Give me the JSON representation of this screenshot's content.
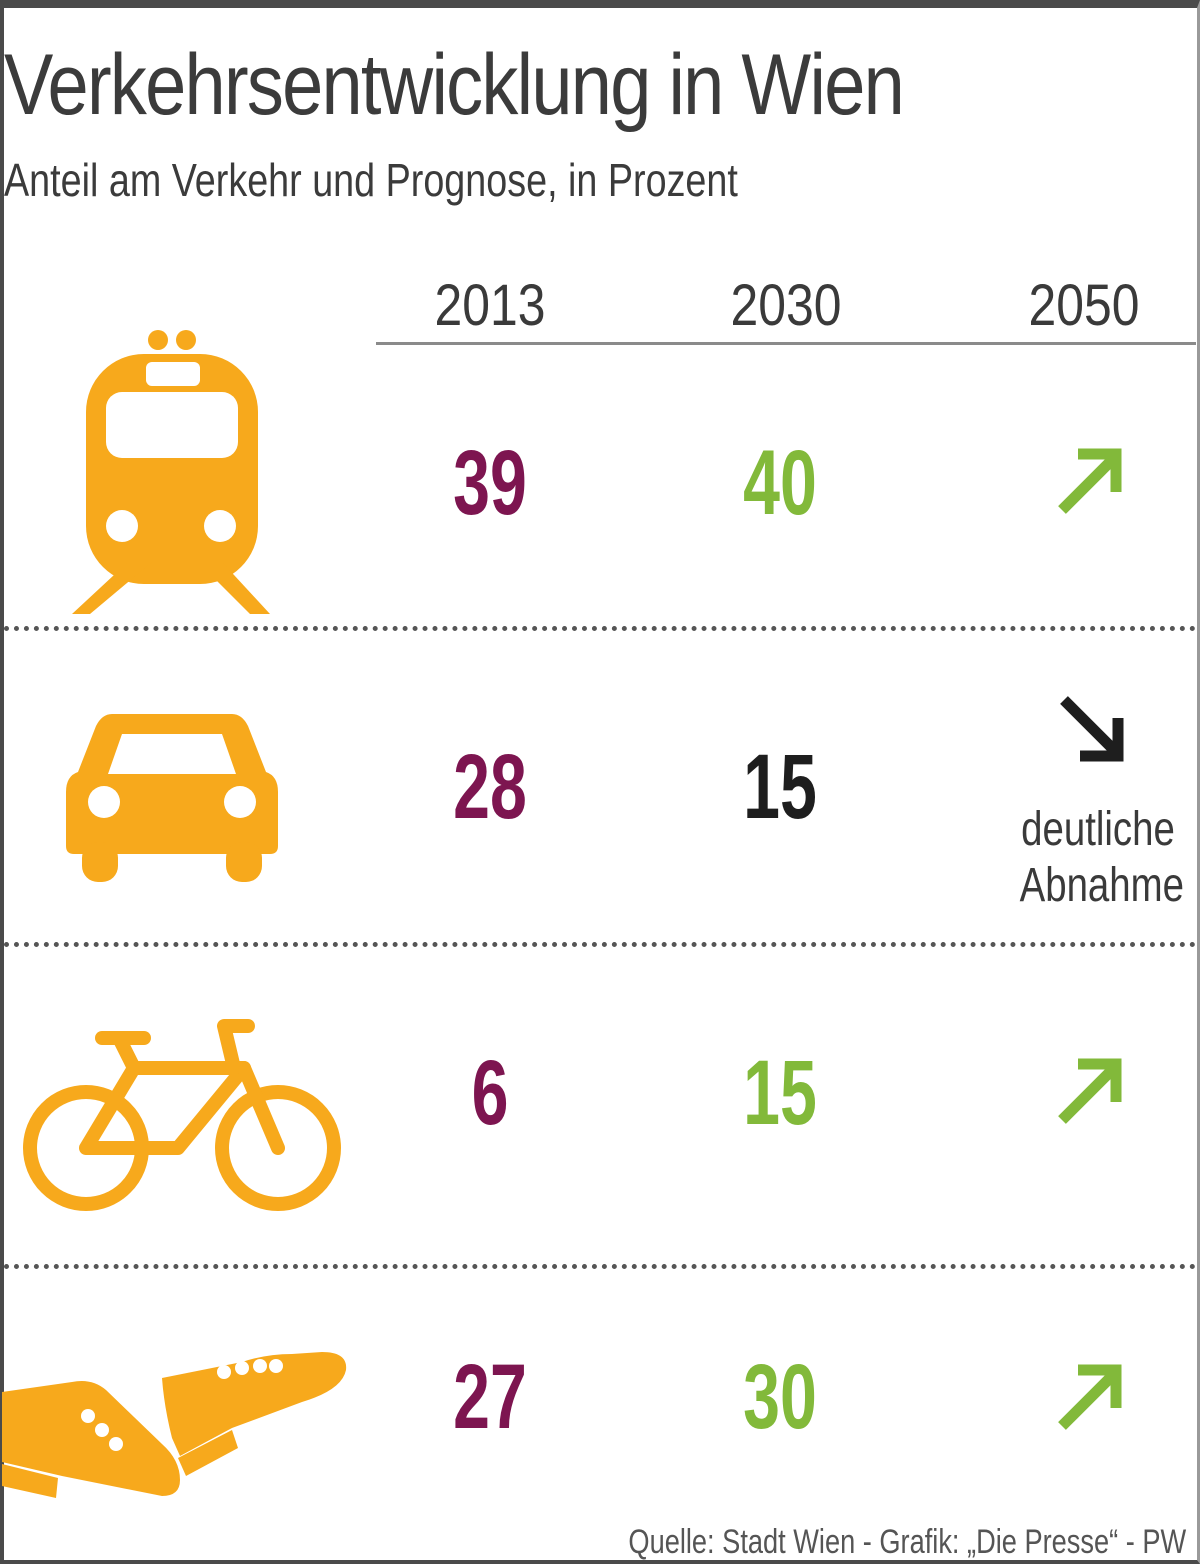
{
  "title": "Verkehrsentwicklung in Wien",
  "subtitle": "Anteil am Verkehr und Prognose, in Prozent",
  "source": "Quelle: Stadt Wien - Grafik: „Die Presse“ - PW",
  "colors": {
    "value_2013": "#7d1550",
    "value_increase": "#82b93a",
    "value_neutral": "#1e1e1e",
    "arrow_up": "#82b93a",
    "arrow_down": "#1e1e1e",
    "icon": "#f7a91c"
  },
  "chart_data": {
    "type": "table",
    "title": "Verkehrsentwicklung in Wien",
    "subtitle": "Anteil am Verkehr und Prognose, in Prozent",
    "columns": [
      "2013",
      "2030",
      "2050"
    ],
    "rows": [
      {
        "mode": "Öffentlicher Verkehr",
        "icon": "train-icon",
        "v2013": "39",
        "v2030": "40",
        "trend2050": "up",
        "note": ""
      },
      {
        "mode": "Auto",
        "icon": "car-icon",
        "v2013": "28",
        "v2030": "15",
        "trend2050": "down",
        "note": "deutliche Abnahme"
      },
      {
        "mode": "Rad",
        "icon": "bicycle-icon",
        "v2013": "6",
        "v2030": "15",
        "trend2050": "up",
        "note": ""
      },
      {
        "mode": "Zu Fuß",
        "icon": "shoes-icon",
        "v2013": "27",
        "v2030": "30",
        "trend2050": "up",
        "note": ""
      }
    ]
  }
}
